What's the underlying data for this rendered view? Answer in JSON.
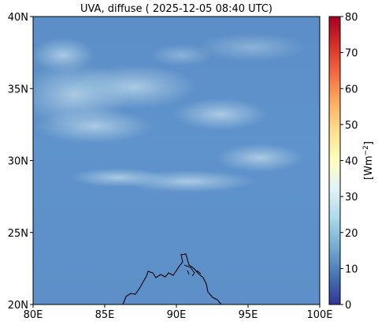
{
  "title": "UVA, diffuse ( 2025-12-05 08:40 UTC)",
  "map": {
    "lon_range": [
      80,
      100
    ],
    "lat_range": [
      20,
      40
    ],
    "x_ticks": [
      "80E",
      "85E",
      "90E",
      "95E",
      "100E"
    ],
    "y_ticks": [
      "20N",
      "25N",
      "30N",
      "35N",
      "40N"
    ],
    "field_value_range": [
      8,
      24
    ],
    "dominant_value": 13
  },
  "colorbar": {
    "label": "[Wm−2]",
    "label_base": "[Wm",
    "label_exp": "−2",
    "label_close": "]",
    "min": 0,
    "max": 80,
    "ticks": [
      "0",
      "10",
      "20",
      "30",
      "40",
      "50",
      "60",
      "70",
      "80"
    ],
    "colormap": "RdYlBu_r",
    "colors": [
      "#313695",
      "#4575b4",
      "#74add1",
      "#abd9e9",
      "#e0f3f8",
      "#ffffbf",
      "#fee090",
      "#fdae61",
      "#f46d43",
      "#d73027",
      "#a50026"
    ]
  }
}
